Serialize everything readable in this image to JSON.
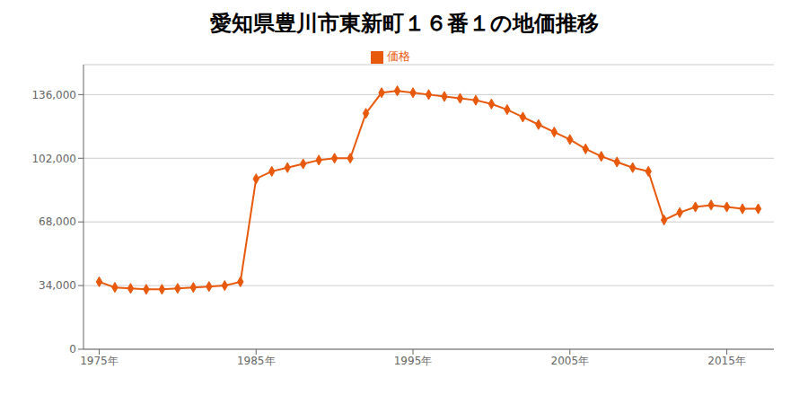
{
  "chart_data": {
    "type": "line",
    "title": "愛知県豊川市東新町１６番１の地価推移",
    "x": [
      1975,
      1976,
      1977,
      1978,
      1979,
      1980,
      1981,
      1982,
      1983,
      1984,
      1985,
      1986,
      1987,
      1988,
      1989,
      1990,
      1991,
      1992,
      1993,
      1994,
      1995,
      1996,
      1997,
      1998,
      1999,
      2000,
      2001,
      2002,
      2003,
      2004,
      2005,
      2006,
      2007,
      2008,
      2009,
      2010,
      2011,
      2012,
      2013,
      2014,
      2015,
      2016,
      2017
    ],
    "series": [
      {
        "name": "価格",
        "color": "#e8590c",
        "marker": "diamond",
        "values": [
          36000,
          33000,
          32500,
          32000,
          32000,
          32500,
          33000,
          33500,
          34000,
          36000,
          91000,
          95000,
          97000,
          99000,
          101000,
          102000,
          102000,
          126000,
          137000,
          138000,
          137000,
          136000,
          135000,
          134000,
          133000,
          131000,
          128000,
          124000,
          120000,
          116000,
          112000,
          107000,
          103000,
          100000,
          97000,
          95000,
          69000,
          73000,
          76000,
          77000,
          76000,
          75000,
          75000
        ]
      }
    ],
    "xlim": [
      1974,
      2018
    ],
    "xticks": [
      {
        "value": 1975,
        "label": "1975年"
      },
      {
        "value": 1985,
        "label": "1985年"
      },
      {
        "value": 1995,
        "label": "1995年"
      },
      {
        "value": 2005,
        "label": "2005年"
      },
      {
        "value": 2015,
        "label": "2015年"
      }
    ],
    "ylim": [
      0,
      152000
    ],
    "yticks": [
      0,
      {
        "value": 34000,
        "label": "34,000"
      },
      {
        "value": 68000,
        "label": "68,000"
      },
      {
        "value": 102000,
        "label": "102,000"
      },
      {
        "value": 136000,
        "label": "136,000"
      }
    ],
    "grid": true,
    "legend": "top"
  }
}
